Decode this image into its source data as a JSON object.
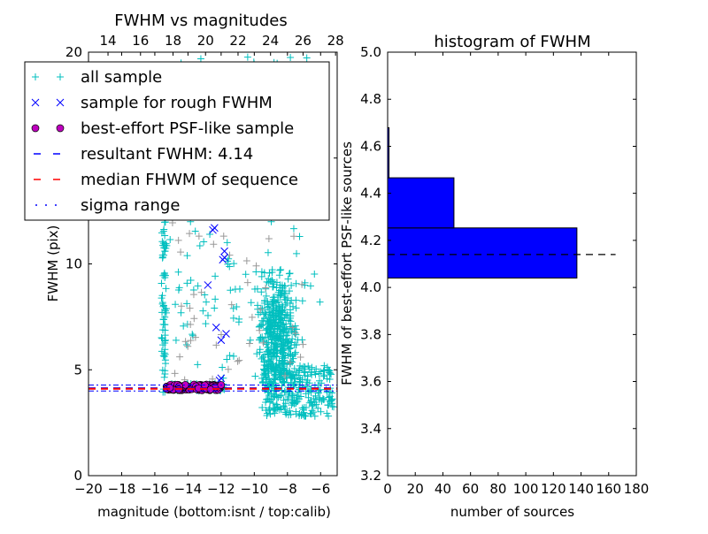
{
  "chart_data": [
    {
      "type": "scatter",
      "title": "FWHM vs magnitudes",
      "xlabel": "magnitude (bottom:isnt / top:calib)",
      "ylabel": "FWHM (pix)",
      "xlim": [
        -20,
        -5
      ],
      "ylim": [
        0,
        20
      ],
      "xticks": [
        "−20",
        "−18",
        "−16",
        "−14",
        "−12",
        "−10",
        "−8",
        "−6"
      ],
      "xtick_values": [
        -20,
        -18,
        -16,
        -14,
        -12,
        -10,
        -8,
        -6
      ],
      "yticks": [
        "0",
        "5",
        "10",
        "15",
        "20"
      ],
      "ytick_values": [
        0,
        5,
        10,
        15,
        20
      ],
      "top_xlim": [
        12.8,
        28.1
      ],
      "top_xticks": [
        "14",
        "16",
        "18",
        "20",
        "22",
        "24",
        "26",
        "28"
      ],
      "top_xtick_values": [
        14,
        16,
        18,
        20,
        22,
        24,
        26,
        28
      ],
      "legend_position": "upper-left",
      "legend": [
        {
          "label": "all sample",
          "marker": "plus",
          "color": "#00bfbf"
        },
        {
          "label": "sample for rough FWHM",
          "marker": "x",
          "color": "#0000ff"
        },
        {
          "label": "best-effort PSF-like sample",
          "marker": "circle",
          "color": "#bf00bf"
        },
        {
          "label": "resultant FWHM: 4.14",
          "marker": "dashed",
          "color": "#0000ff"
        },
        {
          "label": "median FHWM of sequence",
          "marker": "dashed",
          "color": "#ff0000"
        },
        {
          "label": "sigma range",
          "marker": "dashdot",
          "color": "#0000ff"
        }
      ],
      "all_sample_clusters": [
        {
          "x": [
            -15.6,
            -15.3
          ],
          "y": [
            3.9,
            12
          ],
          "n": 70
        },
        {
          "x": [
            -10.2,
            -6.8
          ],
          "y": [
            4.5,
            12.5
          ],
          "n": 450,
          "peak": [
            -8.6,
            6.5
          ]
        },
        {
          "x": [
            -9.5,
            -5.2
          ],
          "y": [
            2.8,
            5.2
          ],
          "n": 260
        },
        {
          "x": [
            -15.3,
            -6
          ],
          "y": [
            7.5,
            19.8
          ],
          "n": 110
        },
        {
          "x": [
            -15.3,
            -11.8
          ],
          "y": [
            4.0,
            4.35
          ],
          "n": 90
        },
        {
          "x": [
            -14.8,
            -10
          ],
          "y": [
            4.6,
            9.5
          ],
          "n": 30
        }
      ],
      "gray_sample_clusters": [
        {
          "x": [
            -15,
            -7
          ],
          "y": [
            4.5,
            13
          ],
          "n": 50
        }
      ],
      "rough_sample": [
        [
          -12.5,
          11.6
        ],
        [
          -12.4,
          11.7
        ],
        [
          -11.8,
          10.6
        ],
        [
          -11.8,
          10.3
        ],
        [
          -11.9,
          10.2
        ],
        [
          -12.8,
          9.0
        ],
        [
          -12.3,
          7.0
        ],
        [
          -11.7,
          6.7
        ],
        [
          -12.0,
          6.4
        ],
        [
          -12.1,
          4.5
        ],
        [
          -12.0,
          4.6
        ]
      ],
      "psf_like_cluster": {
        "x": [
          -15.3,
          -12.0
        ],
        "y": [
          4.03,
          4.3
        ],
        "n": 130
      },
      "lines": {
        "resultant": 4.14,
        "median": 4.1,
        "sigma": [
          4.0,
          4.28
        ]
      }
    },
    {
      "type": "bar",
      "orientation": "horizontal",
      "title": "histogram of FWHM",
      "xlabel": "number of sources",
      "ylabel": "FWHM of best-effort PSF-like sources",
      "xlim": [
        0,
        180
      ],
      "ylim": [
        3.2,
        5.0
      ],
      "xticks": [
        "0",
        "20",
        "40",
        "60",
        "80",
        "100",
        "120",
        "140",
        "160",
        "180"
      ],
      "xtick_values": [
        0,
        20,
        40,
        60,
        80,
        100,
        120,
        140,
        160,
        180
      ],
      "yticks": [
        "3.2",
        "3.4",
        "3.6",
        "3.8",
        "4.0",
        "4.2",
        "4.4",
        "4.6",
        "4.8",
        "5.0"
      ],
      "ytick_values": [
        3.2,
        3.4,
        3.6,
        3.8,
        4.0,
        4.2,
        4.4,
        4.6,
        4.8,
        5.0
      ],
      "bins": [
        [
          4.04,
          4.253
        ],
        [
          4.253,
          4.466
        ],
        [
          4.466,
          4.679
        ],
        [
          4.679,
          4.892
        ]
      ],
      "values": [
        137,
        48,
        1,
        0
      ],
      "color": "#0000ff",
      "reference_line": {
        "value": 4.14,
        "xmax": 165
      }
    }
  ]
}
